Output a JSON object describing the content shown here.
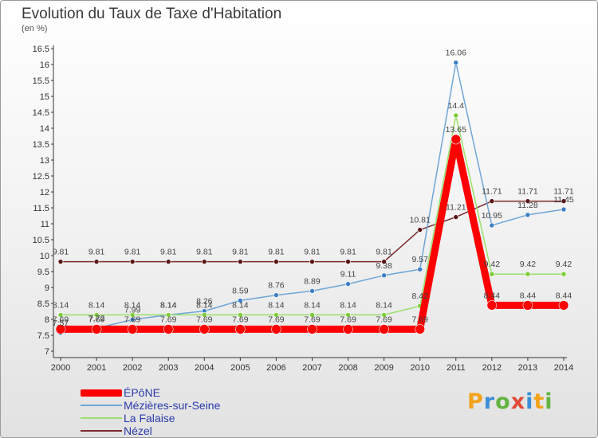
{
  "title": "Evolution du Taux de Taxe d'Habitation",
  "unit": "(en %)",
  "logo": "Proxiti",
  "chart_data": {
    "type": "line",
    "title": "Evolution du Taux de Taxe d'Habitation",
    "ylabel": "(en %)",
    "ylim": [
      7,
      16.5
    ],
    "yticks": [
      "7",
      "7.5",
      "8",
      "8.5",
      "9",
      "9.5",
      "10",
      "10.5",
      "11",
      "11.5",
      "12",
      "12.5",
      "13",
      "13.5",
      "14",
      "14.5",
      "15",
      "15.5",
      "16",
      "16.5"
    ],
    "categories": [
      "2000",
      "2001",
      "2002",
      "2003",
      "2004",
      "2005",
      "2006",
      "2007",
      "2008",
      "2009",
      "2010",
      "2011",
      "2012",
      "2013",
      "2014"
    ],
    "grid": false,
    "legend_position": "bottom-left",
    "series": [
      {
        "name": "ÉPôNE",
        "color": "#ff0000",
        "values": [
          7.69,
          7.69,
          7.69,
          7.69,
          7.69,
          7.69,
          7.69,
          7.69,
          7.69,
          7.69,
          7.69,
          13.65,
          8.44,
          8.44,
          8.44
        ],
        "labels": [
          "7.69",
          "7.69",
          "7.69",
          "7.69",
          "7.69",
          "7.69",
          "7.69",
          "7.69",
          "7.69",
          "7.69",
          "7.69",
          "13.65",
          "8.44",
          "8.44",
          "8.44"
        ]
      },
      {
        "name": "Mézières-sur-Seine",
        "color": "#6fa6d6",
        "values": [
          7.57,
          7.72,
          7.99,
          8.14,
          8.26,
          8.59,
          8.76,
          8.89,
          9.11,
          9.38,
          9.57,
          16.06,
          10.95,
          11.28,
          11.45
        ],
        "labels": [
          "7.57",
          "7.72",
          "7.99",
          "8.14",
          "8.26",
          "8.59",
          "8.76",
          "8.89",
          "9.11",
          "9.38",
          "9.57",
          "16.06",
          "10.95",
          "11.28",
          "11.45"
        ]
      },
      {
        "name": "La Falaise",
        "color": "#9ae06a",
        "values": [
          8.14,
          8.14,
          8.14,
          8.14,
          8.14,
          8.14,
          8.14,
          8.14,
          8.14,
          8.14,
          8.42,
          14.4,
          9.42,
          9.42,
          9.42
        ],
        "labels": [
          "8.14",
          "8.14",
          "8.14",
          "8.14",
          "8.14",
          "8.14",
          "8.14",
          "8.14",
          "8.14",
          "8.14",
          "8.42",
          "14.4",
          "9.42",
          "9.42",
          "9.42"
        ]
      },
      {
        "name": "Nézel",
        "color": "#7a2a2a",
        "values": [
          9.81,
          9.81,
          9.81,
          9.81,
          9.81,
          9.81,
          9.81,
          9.81,
          9.81,
          9.81,
          10.81,
          11.21,
          11.71,
          11.71,
          11.71
        ],
        "labels": [
          "9.81",
          "9.81",
          "9.81",
          "9.81",
          "9.81",
          "9.81",
          "9.81",
          "9.81",
          "9.81",
          "9.81",
          "10.81",
          "11.21",
          "11.71",
          "11.71",
          "11.71"
        ]
      }
    ]
  }
}
